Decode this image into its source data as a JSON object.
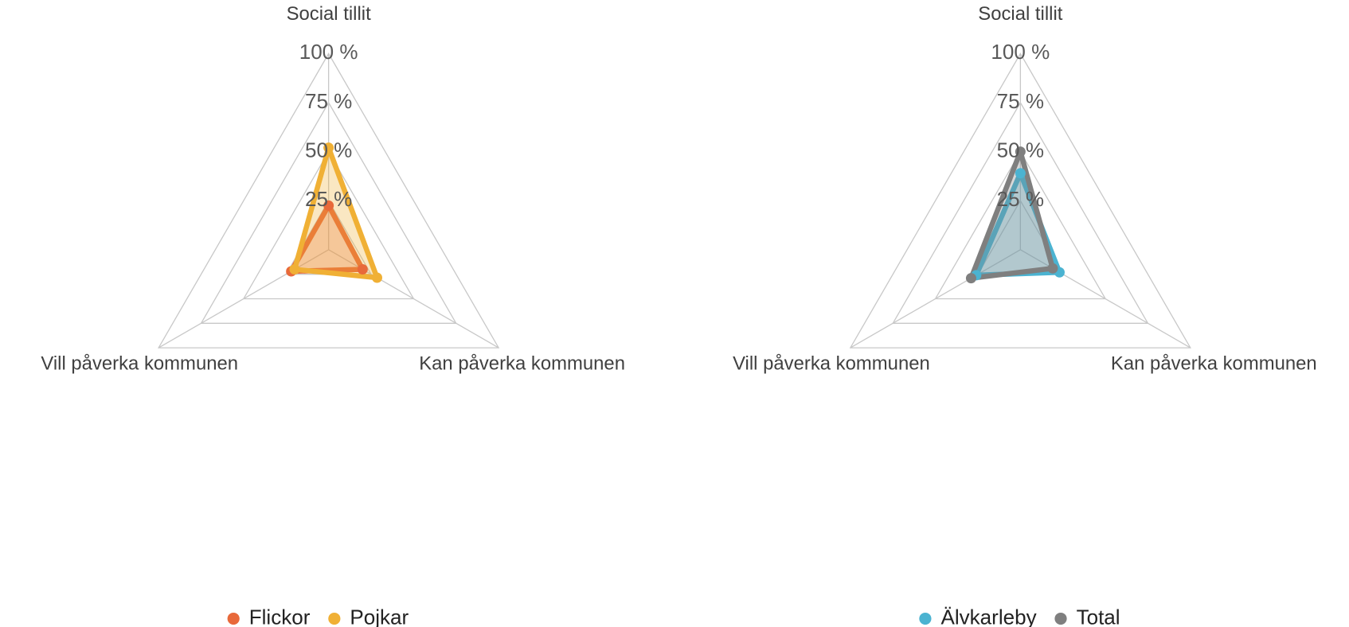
{
  "chart_data": [
    {
      "type": "radar",
      "categories": [
        "Social tillit",
        "Kan påverka kommunen",
        "Vill påverka kommunen"
      ],
      "series": [
        {
          "name": "Flickor",
          "color": "#e8693a",
          "values": [
            22.5,
            20,
            22
          ]
        },
        {
          "name": "Pojkar",
          "color": "#f0b035",
          "values": [
            52,
            28.5,
            20
          ]
        }
      ],
      "rlim": [
        0,
        100
      ],
      "rticks": [
        {
          "value": 25,
          "label": "25 %"
        },
        {
          "value": 50,
          "label": "50 %"
        },
        {
          "value": 75,
          "label": "75 %"
        },
        {
          "value": 100,
          "label": "100 %"
        }
      ],
      "grid": true,
      "legend": "bottom"
    },
    {
      "type": "radar",
      "categories": [
        "Social tillit",
        "Kan påverka kommunen",
        "Vill påverka kommunen"
      ],
      "series": [
        {
          "name": "Älvkarleby",
          "color": "#4bb3d1",
          "values": [
            39,
            23,
            26
          ]
        },
        {
          "name": "Total",
          "color": "#7f7f7f",
          "values": [
            50,
            19,
            29
          ]
        }
      ],
      "rlim": [
        0,
        100
      ],
      "rticks": [
        {
          "value": 25,
          "label": "25 %"
        },
        {
          "value": 50,
          "label": "50 %"
        },
        {
          "value": 75,
          "label": "75 %"
        },
        {
          "value": 100,
          "label": "100 %"
        }
      ],
      "grid": true,
      "legend": "bottom"
    }
  ]
}
